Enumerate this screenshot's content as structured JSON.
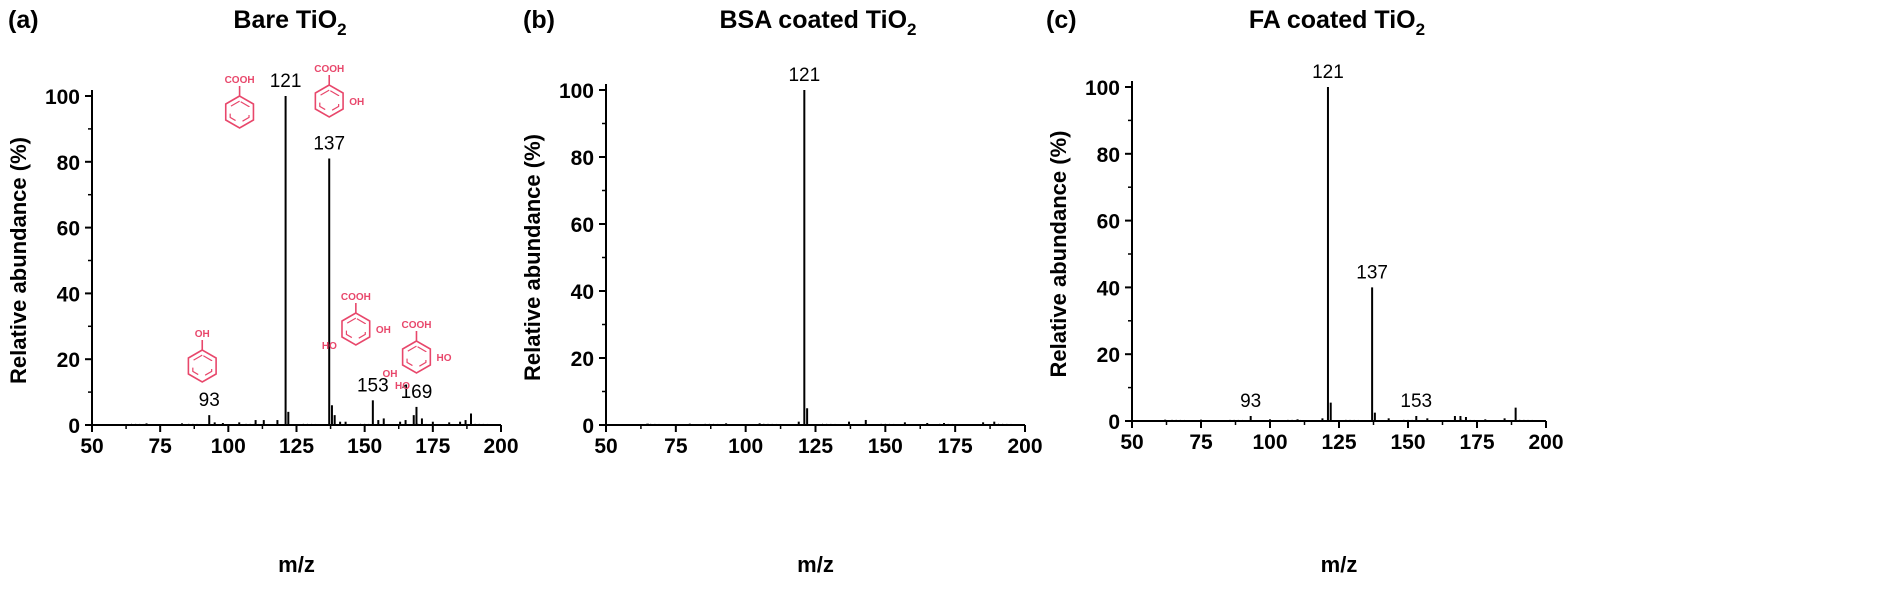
{
  "chart_data": [
    {
      "type": "bar",
      "panel_label": "(a)",
      "title": "Bare TiO",
      "title_sub": "2",
      "xlabel": "m/z",
      "ylabel": "Relative abundance (%)",
      "xlim": [
        50,
        200
      ],
      "ylim": [
        0,
        100
      ],
      "xticks": [
        50,
        75,
        100,
        125,
        150,
        175,
        200
      ],
      "yticks": [
        0,
        20,
        40,
        60,
        80,
        100
      ],
      "peaks": [
        {
          "x": 121,
          "y": 100,
          "label": "121"
        },
        {
          "x": 137,
          "y": 81,
          "label": "137"
        },
        {
          "x": 153,
          "y": 7.5,
          "label": "153"
        },
        {
          "x": 169,
          "y": 5.5,
          "label": "169"
        },
        {
          "x": 93,
          "y": 3,
          "label": "93"
        },
        {
          "x": 122,
          "y": 4
        },
        {
          "x": 138,
          "y": 6
        },
        {
          "x": 139,
          "y": 3
        },
        {
          "x": 189,
          "y": 3.5
        },
        {
          "x": 168,
          "y": 3
        },
        {
          "x": 110,
          "y": 1.5
        },
        {
          "x": 113,
          "y": 1.5
        },
        {
          "x": 118,
          "y": 1.5
        },
        {
          "x": 141,
          "y": 1
        },
        {
          "x": 143,
          "y": 1
        },
        {
          "x": 155,
          "y": 1.5
        },
        {
          "x": 157,
          "y": 2
        },
        {
          "x": 163,
          "y": 1
        },
        {
          "x": 165,
          "y": 1.5
        },
        {
          "x": 171,
          "y": 2
        },
        {
          "x": 175,
          "y": 1
        },
        {
          "x": 181,
          "y": 0.8
        },
        {
          "x": 185,
          "y": 1
        },
        {
          "x": 187,
          "y": 1.5
        },
        {
          "x": 95,
          "y": 0.8
        },
        {
          "x": 104,
          "y": 0.8
        },
        {
          "x": 98,
          "y": 0.6
        },
        {
          "x": 83,
          "y": 0.5
        },
        {
          "x": 70,
          "y": 0.5
        }
      ],
      "structures": [
        {
          "name": "benzoic acid",
          "at": [
            121,
            100
          ],
          "labels": [
            "COOH"
          ]
        },
        {
          "name": "hydroxybenzoic acid",
          "at": [
            137,
            81
          ],
          "labels": [
            "COOH",
            "OH"
          ]
        },
        {
          "name": "phenol",
          "at": [
            93,
            3
          ],
          "labels": [
            "OH"
          ]
        },
        {
          "name": "dihydroxybenzoic acid",
          "at": [
            153,
            7.5
          ],
          "labels": [
            "COOH",
            "OH",
            "HO"
          ]
        },
        {
          "name": "trihydroxybenzoic acid",
          "at": [
            169,
            5.5
          ],
          "labels": [
            "COOH",
            "HO",
            "OH",
            "HO"
          ]
        }
      ]
    },
    {
      "type": "bar",
      "panel_label": "(b)",
      "title": "BSA coated TiO",
      "title_sub": "2",
      "xlabel": "m/z",
      "ylabel": "Relative abundance (%)",
      "xlim": [
        50,
        200
      ],
      "ylim": [
        0,
        100
      ],
      "xticks": [
        50,
        75,
        100,
        125,
        150,
        175,
        200
      ],
      "yticks": [
        0,
        20,
        40,
        60,
        80,
        100
      ],
      "peaks": [
        {
          "x": 121,
          "y": 100,
          "label": "121"
        },
        {
          "x": 122,
          "y": 5
        },
        {
          "x": 119,
          "y": 1
        },
        {
          "x": 137,
          "y": 1
        },
        {
          "x": 143,
          "y": 1.5
        },
        {
          "x": 157,
          "y": 0.8
        },
        {
          "x": 165,
          "y": 0.6
        },
        {
          "x": 171,
          "y": 0.6
        },
        {
          "x": 185,
          "y": 0.8
        },
        {
          "x": 189,
          "y": 1
        },
        {
          "x": 105,
          "y": 0.5
        },
        {
          "x": 93,
          "y": 0.5
        },
        {
          "x": 80,
          "y": 0.4
        },
        {
          "x": 65,
          "y": 0.4
        }
      ],
      "structures": []
    },
    {
      "type": "bar",
      "panel_label": "(c)",
      "title": "FA coated TiO",
      "title_sub": "2",
      "xlabel": "m/z",
      "ylabel": "Relative abundance (%)",
      "xlim": [
        50,
        200
      ],
      "ylim": [
        0,
        100
      ],
      "xticks": [
        50,
        75,
        100,
        125,
        150,
        175,
        200
      ],
      "yticks": [
        0,
        20,
        40,
        60,
        80,
        100
      ],
      "peaks": [
        {
          "x": 121,
          "y": 100,
          "label": "121"
        },
        {
          "x": 137,
          "y": 40,
          "label": "137"
        },
        {
          "x": 93,
          "y": 1.5,
          "label": "93"
        },
        {
          "x": 153,
          "y": 1.5,
          "label": "153"
        },
        {
          "x": 122,
          "y": 5.5
        },
        {
          "x": 138,
          "y": 2.5
        },
        {
          "x": 189,
          "y": 4
        },
        {
          "x": 167,
          "y": 1.5
        },
        {
          "x": 169,
          "y": 1.5
        },
        {
          "x": 171,
          "y": 1.2
        },
        {
          "x": 157,
          "y": 0.8
        },
        {
          "x": 143,
          "y": 0.8
        },
        {
          "x": 119,
          "y": 0.8
        },
        {
          "x": 110,
          "y": 0.5
        },
        {
          "x": 100,
          "y": 0.5
        },
        {
          "x": 185,
          "y": 0.8
        },
        {
          "x": 178,
          "y": 0.5
        },
        {
          "x": 75,
          "y": 0.4
        },
        {
          "x": 62,
          "y": 0.4
        }
      ],
      "structures": []
    }
  ],
  "colors": {
    "axis": "#000000",
    "peaks": "#000000",
    "structure": "#e8476b"
  }
}
